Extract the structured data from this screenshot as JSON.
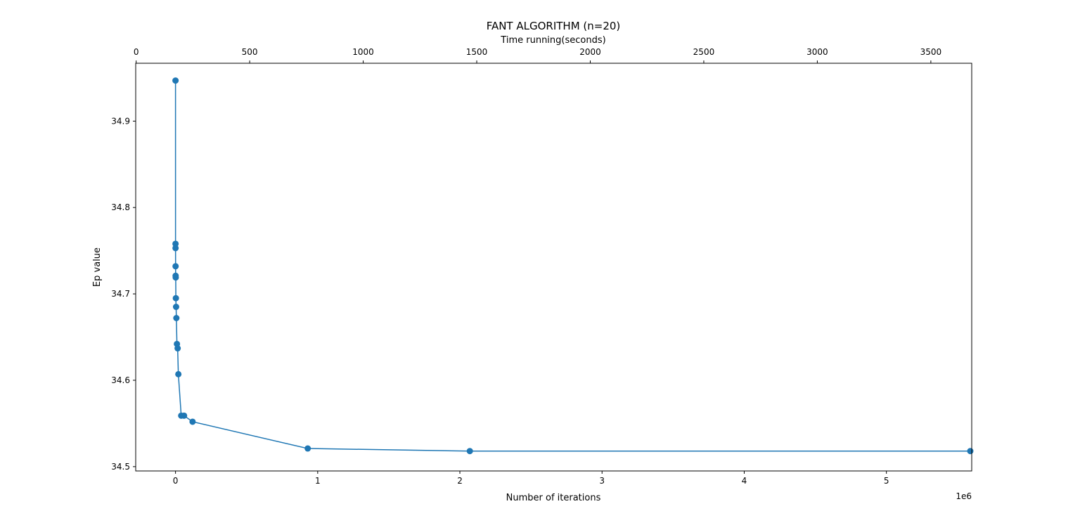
{
  "chart_data": {
    "type": "line",
    "title": "FANT ALGORITHM (n=20)",
    "xlabel": "Number of iterations",
    "x_offset_label": "1e6",
    "top_xlabel": "Time running(seconds)",
    "ylabel": "Ep value",
    "xlim": [
      -280000,
      5600000
    ],
    "top_xlim": [
      -2,
      3680
    ],
    "ylim": [
      34.495,
      34.967
    ],
    "x_ticks": [
      0,
      1000000,
      2000000,
      3000000,
      4000000,
      5000000
    ],
    "x_tick_labels": [
      "0",
      "1",
      "2",
      "3",
      "4",
      "5"
    ],
    "top_x_ticks": [
      0,
      500,
      1000,
      1500,
      2000,
      2500,
      3000,
      3500
    ],
    "top_x_tick_labels": [
      "0",
      "500",
      "1000",
      "1500",
      "2000",
      "2500",
      "3000",
      "3500"
    ],
    "y_ticks": [
      34.5,
      34.6,
      34.7,
      34.8,
      34.9
    ],
    "y_tick_labels": [
      "34.5",
      "34.6",
      "34.7",
      "34.8",
      "34.9"
    ],
    "grid": false,
    "marker": "circle",
    "color": "#1f77b4",
    "series": [
      {
        "x": [
          0,
          100,
          200,
          500,
          800,
          1500,
          2500,
          4000,
          6000,
          10000,
          15000,
          20000,
          40000,
          60000,
          120000,
          930000,
          2070000,
          5590000
        ],
        "y": [
          34.947,
          34.758,
          34.753,
          34.732,
          34.721,
          34.719,
          34.695,
          34.685,
          34.672,
          34.642,
          34.637,
          34.607,
          34.559,
          34.559,
          34.552,
          34.521,
          34.518,
          34.518
        ]
      }
    ]
  }
}
